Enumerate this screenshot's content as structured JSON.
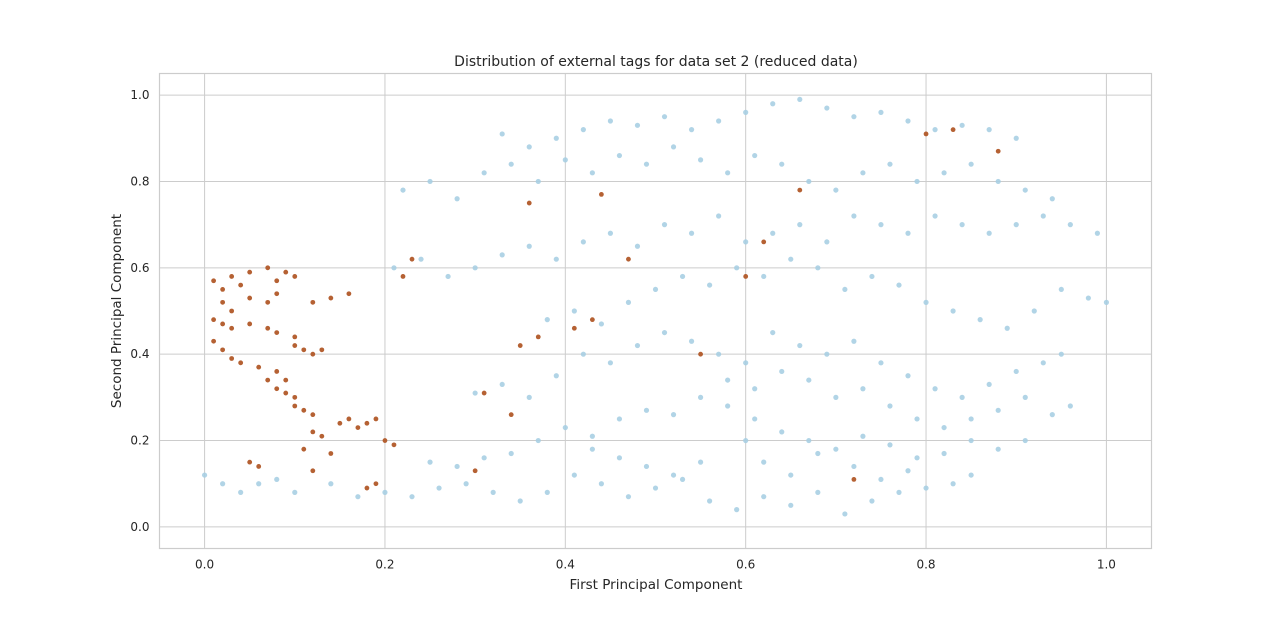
{
  "chart_data": {
    "type": "scatter",
    "title": "Distribution of external tags for data set 2 (reduced data)",
    "xlabel": "First Principal Component",
    "ylabel": "Second Principal Component",
    "xlim": [
      -0.05,
      1.05
    ],
    "ylim": [
      -0.05,
      1.05
    ],
    "grid": true,
    "legend": "none",
    "x_ticks": [
      0.0,
      0.2,
      0.4,
      0.6,
      0.8,
      1.0
    ],
    "y_ticks": [
      0.0,
      0.2,
      0.4,
      0.6,
      0.8,
      1.0
    ],
    "x_tick_labels": [
      "0.0",
      "0.2",
      "0.4",
      "0.6",
      "0.8",
      "1.0"
    ],
    "y_tick_labels": [
      "0.0",
      "0.2",
      "0.4",
      "0.6",
      "0.8",
      "1.0"
    ],
    "series": [
      {
        "color": "#a6cee3",
        "points": [
          [
            0.0,
            0.12
          ],
          [
            0.02,
            0.1
          ],
          [
            0.04,
            0.08
          ],
          [
            0.06,
            0.1
          ],
          [
            0.08,
            0.11
          ],
          [
            0.1,
            0.08
          ],
          [
            0.14,
            0.1
          ],
          [
            0.17,
            0.07
          ],
          [
            0.2,
            0.08
          ],
          [
            0.23,
            0.07
          ],
          [
            0.26,
            0.09
          ],
          [
            0.29,
            0.1
          ],
          [
            0.32,
            0.08
          ],
          [
            0.35,
            0.06
          ],
          [
            0.38,
            0.08
          ],
          [
            0.41,
            0.12
          ],
          [
            0.44,
            0.1
          ],
          [
            0.47,
            0.07
          ],
          [
            0.5,
            0.09
          ],
          [
            0.53,
            0.11
          ],
          [
            0.56,
            0.06
          ],
          [
            0.59,
            0.04
          ],
          [
            0.62,
            0.07
          ],
          [
            0.65,
            0.05
          ],
          [
            0.68,
            0.08
          ],
          [
            0.71,
            0.03
          ],
          [
            0.74,
            0.06
          ],
          [
            0.77,
            0.08
          ],
          [
            0.8,
            0.09
          ],
          [
            0.83,
            0.1
          ],
          [
            0.85,
            0.12
          ],
          [
            0.25,
            0.15
          ],
          [
            0.28,
            0.14
          ],
          [
            0.31,
            0.16
          ],
          [
            0.34,
            0.17
          ],
          [
            0.37,
            0.2
          ],
          [
            0.4,
            0.23
          ],
          [
            0.43,
            0.21
          ],
          [
            0.46,
            0.25
          ],
          [
            0.49,
            0.27
          ],
          [
            0.52,
            0.26
          ],
          [
            0.55,
            0.3
          ],
          [
            0.58,
            0.28
          ],
          [
            0.61,
            0.25
          ],
          [
            0.64,
            0.22
          ],
          [
            0.67,
            0.2
          ],
          [
            0.7,
            0.18
          ],
          [
            0.73,
            0.21
          ],
          [
            0.76,
            0.19
          ],
          [
            0.79,
            0.16
          ],
          [
            0.82,
            0.17
          ],
          [
            0.85,
            0.2
          ],
          [
            0.88,
            0.18
          ],
          [
            0.91,
            0.2
          ],
          [
            0.94,
            0.26
          ],
          [
            0.96,
            0.28
          ],
          [
            0.3,
            0.31
          ],
          [
            0.33,
            0.33
          ],
          [
            0.36,
            0.3
          ],
          [
            0.39,
            0.35
          ],
          [
            0.42,
            0.4
          ],
          [
            0.45,
            0.38
          ],
          [
            0.48,
            0.42
          ],
          [
            0.51,
            0.45
          ],
          [
            0.54,
            0.43
          ],
          [
            0.57,
            0.4
          ],
          [
            0.6,
            0.38
          ],
          [
            0.63,
            0.45
          ],
          [
            0.66,
            0.42
          ],
          [
            0.69,
            0.4
          ],
          [
            0.72,
            0.43
          ],
          [
            0.75,
            0.38
          ],
          [
            0.78,
            0.35
          ],
          [
            0.81,
            0.32
          ],
          [
            0.84,
            0.3
          ],
          [
            0.87,
            0.33
          ],
          [
            0.9,
            0.36
          ],
          [
            0.93,
            0.38
          ],
          [
            0.95,
            0.4
          ],
          [
            0.38,
            0.48
          ],
          [
            0.41,
            0.5
          ],
          [
            0.44,
            0.47
          ],
          [
            0.47,
            0.52
          ],
          [
            0.5,
            0.55
          ],
          [
            0.53,
            0.58
          ],
          [
            0.56,
            0.56
          ],
          [
            0.59,
            0.6
          ],
          [
            0.62,
            0.58
          ],
          [
            0.65,
            0.62
          ],
          [
            0.68,
            0.6
          ],
          [
            0.71,
            0.55
          ],
          [
            0.74,
            0.58
          ],
          [
            0.77,
            0.56
          ],
          [
            0.8,
            0.52
          ],
          [
            0.83,
            0.5
          ],
          [
            0.86,
            0.48
          ],
          [
            0.89,
            0.46
          ],
          [
            0.92,
            0.5
          ],
          [
            0.95,
            0.55
          ],
          [
            0.98,
            0.53
          ],
          [
            1.0,
            0.52
          ],
          [
            0.21,
            0.6
          ],
          [
            0.24,
            0.62
          ],
          [
            0.27,
            0.58
          ],
          [
            0.3,
            0.6
          ],
          [
            0.33,
            0.63
          ],
          [
            0.36,
            0.65
          ],
          [
            0.39,
            0.62
          ],
          [
            0.42,
            0.66
          ],
          [
            0.45,
            0.68
          ],
          [
            0.48,
            0.65
          ],
          [
            0.51,
            0.7
          ],
          [
            0.54,
            0.68
          ],
          [
            0.57,
            0.72
          ],
          [
            0.6,
            0.66
          ],
          [
            0.63,
            0.68
          ],
          [
            0.66,
            0.7
          ],
          [
            0.69,
            0.66
          ],
          [
            0.72,
            0.72
          ],
          [
            0.75,
            0.7
          ],
          [
            0.78,
            0.68
          ],
          [
            0.81,
            0.72
          ],
          [
            0.84,
            0.7
          ],
          [
            0.87,
            0.68
          ],
          [
            0.9,
            0.7
          ],
          [
            0.93,
            0.72
          ],
          [
            0.96,
            0.7
          ],
          [
            0.99,
            0.68
          ],
          [
            0.22,
            0.78
          ],
          [
            0.25,
            0.8
          ],
          [
            0.28,
            0.76
          ],
          [
            0.31,
            0.82
          ],
          [
            0.34,
            0.84
          ],
          [
            0.37,
            0.8
          ],
          [
            0.4,
            0.85
          ],
          [
            0.43,
            0.82
          ],
          [
            0.46,
            0.86
          ],
          [
            0.49,
            0.84
          ],
          [
            0.52,
            0.88
          ],
          [
            0.55,
            0.85
          ],
          [
            0.58,
            0.82
          ],
          [
            0.61,
            0.86
          ],
          [
            0.64,
            0.84
          ],
          [
            0.67,
            0.8
          ],
          [
            0.7,
            0.78
          ],
          [
            0.73,
            0.82
          ],
          [
            0.76,
            0.84
          ],
          [
            0.79,
            0.8
          ],
          [
            0.82,
            0.82
          ],
          [
            0.85,
            0.84
          ],
          [
            0.88,
            0.8
          ],
          [
            0.91,
            0.78
          ],
          [
            0.94,
            0.76
          ],
          [
            0.33,
            0.91
          ],
          [
            0.36,
            0.88
          ],
          [
            0.39,
            0.9
          ],
          [
            0.42,
            0.92
          ],
          [
            0.45,
            0.94
          ],
          [
            0.48,
            0.93
          ],
          [
            0.51,
            0.95
          ],
          [
            0.54,
            0.92
          ],
          [
            0.57,
            0.94
          ],
          [
            0.6,
            0.96
          ],
          [
            0.63,
            0.98
          ],
          [
            0.66,
            0.99
          ],
          [
            0.69,
            0.97
          ],
          [
            0.72,
            0.95
          ],
          [
            0.75,
            0.96
          ],
          [
            0.78,
            0.94
          ],
          [
            0.81,
            0.92
          ],
          [
            0.84,
            0.93
          ],
          [
            0.87,
            0.92
          ],
          [
            0.9,
            0.9
          ],
          [
            0.6,
            0.2
          ],
          [
            0.62,
            0.15
          ],
          [
            0.65,
            0.12
          ],
          [
            0.68,
            0.17
          ],
          [
            0.72,
            0.14
          ],
          [
            0.75,
            0.11
          ],
          [
            0.78,
            0.13
          ],
          [
            0.55,
            0.15
          ],
          [
            0.52,
            0.12
          ],
          [
            0.49,
            0.14
          ],
          [
            0.46,
            0.16
          ],
          [
            0.43,
            0.18
          ],
          [
            0.58,
            0.34
          ],
          [
            0.61,
            0.32
          ],
          [
            0.64,
            0.36
          ],
          [
            0.67,
            0.34
          ],
          [
            0.7,
            0.3
          ],
          [
            0.73,
            0.32
          ],
          [
            0.76,
            0.28
          ],
          [
            0.79,
            0.25
          ],
          [
            0.82,
            0.23
          ],
          [
            0.85,
            0.25
          ],
          [
            0.88,
            0.27
          ],
          [
            0.91,
            0.3
          ]
        ]
      },
      {
        "color": "#b15928",
        "points": [
          [
            0.01,
            0.57
          ],
          [
            0.02,
            0.55
          ],
          [
            0.03,
            0.58
          ],
          [
            0.04,
            0.56
          ],
          [
            0.05,
            0.59
          ],
          [
            0.07,
            0.6
          ],
          [
            0.08,
            0.57
          ],
          [
            0.09,
            0.59
          ],
          [
            0.1,
            0.58
          ],
          [
            0.02,
            0.52
          ],
          [
            0.03,
            0.5
          ],
          [
            0.05,
            0.53
          ],
          [
            0.07,
            0.52
          ],
          [
            0.08,
            0.54
          ],
          [
            0.12,
            0.52
          ],
          [
            0.14,
            0.53
          ],
          [
            0.16,
            0.54
          ],
          [
            0.01,
            0.48
          ],
          [
            0.02,
            0.47
          ],
          [
            0.03,
            0.46
          ],
          [
            0.05,
            0.47
          ],
          [
            0.07,
            0.46
          ],
          [
            0.08,
            0.45
          ],
          [
            0.1,
            0.44
          ],
          [
            0.01,
            0.43
          ],
          [
            0.02,
            0.41
          ],
          [
            0.03,
            0.39
          ],
          [
            0.04,
            0.38
          ],
          [
            0.06,
            0.37
          ],
          [
            0.08,
            0.36
          ],
          [
            0.09,
            0.34
          ],
          [
            0.11,
            0.41
          ],
          [
            0.12,
            0.4
          ],
          [
            0.13,
            0.41
          ],
          [
            0.1,
            0.42
          ],
          [
            0.07,
            0.34
          ],
          [
            0.08,
            0.32
          ],
          [
            0.09,
            0.31
          ],
          [
            0.1,
            0.3
          ],
          [
            0.1,
            0.28
          ],
          [
            0.11,
            0.27
          ],
          [
            0.12,
            0.26
          ],
          [
            0.12,
            0.22
          ],
          [
            0.13,
            0.21
          ],
          [
            0.15,
            0.24
          ],
          [
            0.16,
            0.25
          ],
          [
            0.17,
            0.23
          ],
          [
            0.18,
            0.24
          ],
          [
            0.19,
            0.25
          ],
          [
            0.2,
            0.2
          ],
          [
            0.21,
            0.19
          ],
          [
            0.11,
            0.18
          ],
          [
            0.14,
            0.17
          ],
          [
            0.05,
            0.15
          ],
          [
            0.06,
            0.14
          ],
          [
            0.12,
            0.13
          ],
          [
            0.18,
            0.09
          ],
          [
            0.19,
            0.1
          ],
          [
            0.23,
            0.62
          ],
          [
            0.22,
            0.58
          ],
          [
            0.35,
            0.42
          ],
          [
            0.37,
            0.44
          ],
          [
            0.41,
            0.46
          ],
          [
            0.43,
            0.48
          ],
          [
            0.36,
            0.75
          ],
          [
            0.44,
            0.77
          ],
          [
            0.47,
            0.62
          ],
          [
            0.6,
            0.58
          ],
          [
            0.55,
            0.4
          ],
          [
            0.62,
            0.66
          ],
          [
            0.66,
            0.78
          ],
          [
            0.72,
            0.11
          ],
          [
            0.34,
            0.26
          ],
          [
            0.31,
            0.31
          ],
          [
            0.3,
            0.13
          ],
          [
            0.8,
            0.91
          ],
          [
            0.83,
            0.92
          ],
          [
            0.88,
            0.87
          ]
        ]
      }
    ]
  }
}
